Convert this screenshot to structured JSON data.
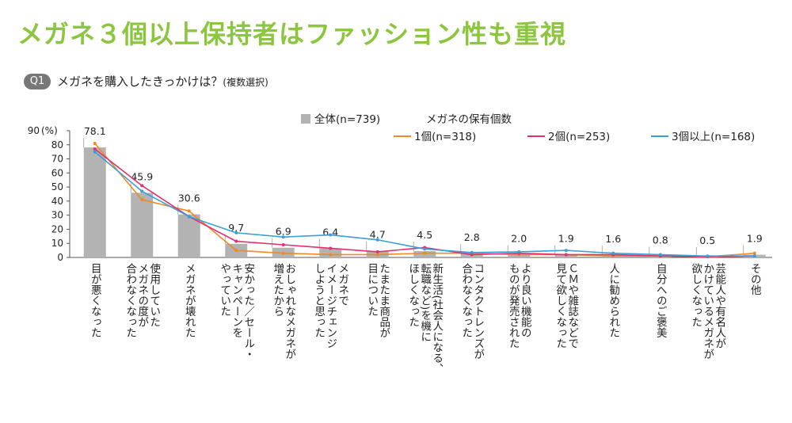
{
  "header": {
    "title": "メガネ３個以上保持者はファッション性も重視",
    "q_badge": "Q1",
    "question": "メガネを購入したきっかけは？",
    "question_note": "(複数選択)"
  },
  "colors": {
    "title": "#8cc63f",
    "bar": "#b3b3b3",
    "series_1": "#f08a24",
    "series_2": "#e2306e",
    "series_3": "#3a9fd8"
  },
  "chart_data": {
    "type": "bar",
    "ylabel": "(%)",
    "ylim": [
      0,
      90
    ],
    "yticks": [
      "0",
      "10",
      "20",
      "30",
      "40",
      "50",
      "60",
      "70",
      "80",
      "90"
    ],
    "grid": false,
    "legend_placement": "top-right",
    "legend_group_label": "メガネの保有個数",
    "categories": [
      "目が悪くなった",
      "使用していたメガネの度が合わなくなった",
      "メガネが壊れた",
      "安かった／セール・キャンペーンをやっていた",
      "おしゃれなメガネが増えたから",
      "メガネでイメージチェンジしようと思った",
      "たまたま商品が目についた",
      "新生活(社会人になる、転職など)を機にほしくなった",
      "コンタクトレンズが合わなくなった",
      "より良い機能のものが発売された",
      "ＣＭや雑誌などで見て欲しくなった",
      "人に勧められた",
      "自分へのご褒美",
      "芸能人や有名人がかけているメガネが欲しくなった",
      "その他"
    ],
    "category_lines": [
      [
        "目が悪くなった"
      ],
      [
        "使用していた",
        "メガネの度が",
        "合わなくなった"
      ],
      [
        "メガネが壊れた"
      ],
      [
        "安かった／セール・",
        "キャンペーンを",
        "やっていた"
      ],
      [
        "おしゃれなメガネが",
        "増えたから"
      ],
      [
        "メガネで",
        "イメージチェンジ",
        "しようと思った"
      ],
      [
        "たまたま商品が",
        "目についた"
      ],
      [
        "新生活(社会人になる、",
        "転職など)を機に",
        "ほしくなった"
      ],
      [
        "コンタクトレンズが",
        "合わなくなった"
      ],
      [
        "より良い機能の",
        "ものが発売された"
      ],
      [
        "ＣＭや雑誌などで",
        "見て欲しくなった"
      ],
      [
        "人に勧められた"
      ],
      [
        "自分へのご褒美"
      ],
      [
        "芸能人や有名人が",
        "かけているメガネが",
        "欲しくなった"
      ],
      [
        "その他"
      ]
    ],
    "series": [
      {
        "name": "全体(n=739)",
        "kind": "bar",
        "values": [
          78.1,
          45.9,
          30.6,
          9.7,
          6.9,
          6.4,
          4.7,
          4.5,
          2.8,
          2.0,
          1.9,
          1.6,
          0.8,
          0.5,
          1.9
        ],
        "labels": [
          "78.1",
          "45.9",
          "30.6",
          "9.7",
          "6.9",
          "6.4",
          "4.7",
          "4.5",
          "2.8",
          "2.0",
          "1.9",
          "1.6",
          "0.8",
          "0.5",
          "1.9"
        ]
      },
      {
        "name": "1個(n=318)",
        "kind": "line",
        "values": [
          81,
          41,
          33,
          5,
          3,
          2,
          2,
          3,
          3,
          2,
          2,
          1,
          1,
          0.5,
          3
        ]
      },
      {
        "name": "2個(n=253)",
        "kind": "line",
        "values": [
          77,
          51,
          29,
          11.5,
          9,
          6.5,
          4,
          7,
          2,
          3,
          2,
          2,
          1,
          0.5,
          1
        ]
      },
      {
        "name": "3個以上(n=168)",
        "kind": "line",
        "values": [
          75,
          47,
          29,
          17.5,
          14.5,
          16,
          12.5,
          6,
          3.5,
          4,
          5,
          3,
          2,
          1,
          1
        ]
      }
    ]
  }
}
